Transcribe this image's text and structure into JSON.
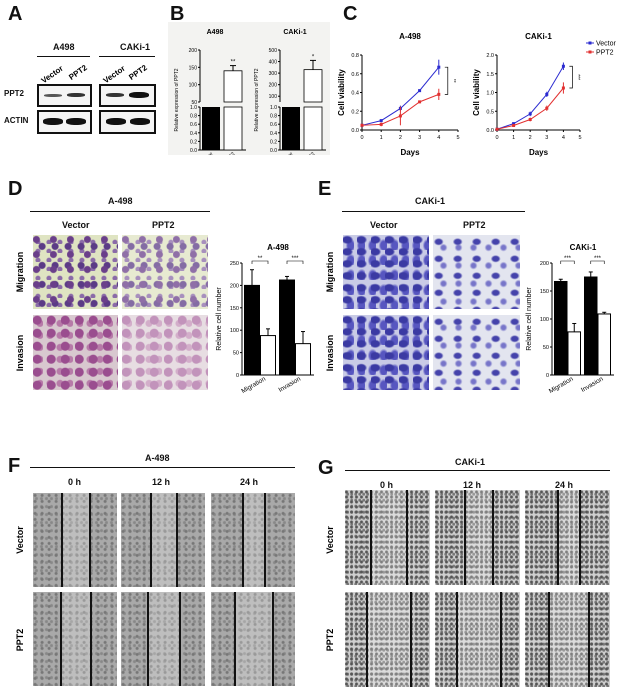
{
  "panels": {
    "A": {
      "label": "A",
      "groups": [
        "A498",
        "CAKi-1"
      ],
      "lanes": [
        "Vector",
        "PPT2"
      ],
      "rows": [
        "PPT2",
        "ACTIN"
      ]
    },
    "B": {
      "label": "B"
    },
    "C": {
      "label": "C"
    },
    "D": {
      "label": "D",
      "title": "A-498",
      "cols": [
        "Vector",
        "PPT2"
      ],
      "rows": [
        "Migration",
        "Invasion"
      ]
    },
    "E": {
      "label": "E",
      "title": "CAKi-1",
      "cols": [
        "Vector",
        "PPT2"
      ],
      "rows": [
        "Migration",
        "Invasion"
      ]
    },
    "F": {
      "label": "F",
      "title": "A-498",
      "times": [
        "0 h",
        "12 h",
        "24 h"
      ],
      "rows": [
        "Vector",
        "PPT2"
      ]
    },
    "G": {
      "label": "G",
      "title": "CAKi-1",
      "times": [
        "0 h",
        "12 h",
        "24 h"
      ],
      "rows": [
        "Vector",
        "PPT2"
      ]
    }
  },
  "colors": {
    "vector": "#2b2bd0",
    "ppt2": "#e23030"
  },
  "chart_data": [
    {
      "id": "B1",
      "type": "bar",
      "title": "A498",
      "ylabel": "Relative expression of PPT2",
      "categories": [
        "vector",
        "PPT2"
      ],
      "values": [
        1.0,
        140
      ],
      "errors": [
        0,
        15
      ],
      "broken_axis": {
        "lower": [
          0,
          1.0
        ],
        "upper": [
          50,
          200
        ],
        "lower_ticks": [
          "0.0",
          "0.2",
          "0.4",
          "0.6",
          "0.8",
          "1.0"
        ],
        "upper_ticks": [
          "50",
          "100",
          "150",
          "200"
        ]
      },
      "significance": "**"
    },
    {
      "id": "B2",
      "type": "bar",
      "title": "CAKi-1",
      "ylabel": "Relative expression of PPT2",
      "categories": [
        "vector",
        "PPT2"
      ],
      "values": [
        1.0,
        330
      ],
      "errors": [
        0,
        80
      ],
      "broken_axis": {
        "lower": [
          0,
          1.0
        ],
        "upper": [
          50,
          500
        ],
        "lower_ticks": [
          "0.0",
          "0.2",
          "0.4",
          "0.6",
          "0.8",
          "1.0"
        ],
        "upper_ticks": [
          "100",
          "200",
          "300",
          "400",
          "500"
        ]
      },
      "significance": "*"
    },
    {
      "id": "C1",
      "type": "line",
      "title": "A-498",
      "xlabel": "Days",
      "ylabel": "Cell viability",
      "x": [
        0,
        1,
        2,
        3,
        4
      ],
      "xlim": [
        0,
        5
      ],
      "ylim": [
        0,
        0.8
      ],
      "yticks": [
        "0.0",
        "0.2",
        "0.4",
        "0.6",
        "0.8"
      ],
      "xticks": [
        "0",
        "1",
        "2",
        "3",
        "4",
        "5"
      ],
      "series": [
        {
          "name": "Vector",
          "values": [
            0.05,
            0.1,
            0.23,
            0.42,
            0.67
          ],
          "errors": [
            0.01,
            0.01,
            0.03,
            0.01,
            0.08
          ]
        },
        {
          "name": "PPT2",
          "values": [
            0.05,
            0.06,
            0.15,
            0.3,
            0.38
          ],
          "errors": [
            0.01,
            0.02,
            0.1,
            0.01,
            0.06
          ]
        }
      ],
      "significance": "**"
    },
    {
      "id": "C2",
      "type": "line",
      "title": "CAKi-1",
      "xlabel": "Days",
      "ylabel": "Cell viability",
      "x": [
        0,
        1,
        2,
        3,
        4
      ],
      "xlim": [
        0,
        5
      ],
      "ylim": [
        0,
        2.0
      ],
      "yticks": [
        "0.0",
        "0.5",
        "1.0",
        "1.5",
        "2.0"
      ],
      "xticks": [
        "0",
        "1",
        "2",
        "3",
        "4",
        "5"
      ],
      "series": [
        {
          "name": "Vector",
          "values": [
            0.02,
            0.17,
            0.43,
            0.95,
            1.7
          ],
          "errors": [
            0.01,
            0.03,
            0.06,
            0.07,
            0.1
          ]
        },
        {
          "name": "PPT2",
          "values": [
            0.02,
            0.12,
            0.28,
            0.58,
            1.12
          ],
          "errors": [
            0.01,
            0.02,
            0.05,
            0.07,
            0.15
          ]
        }
      ],
      "significance": "***",
      "legend": "top-right"
    },
    {
      "id": "D",
      "type": "bar",
      "title": "A-498",
      "ylabel": "Relative cell number",
      "categories": [
        "Migration",
        "Invasion"
      ],
      "ylim": [
        0,
        250
      ],
      "yticks": [
        "0",
        "50",
        "100",
        "150",
        "200",
        "250"
      ],
      "series": [
        {
          "values": [
            200,
            212
          ],
          "errors": [
            35,
            8
          ]
        },
        {
          "values": [
            88,
            70
          ],
          "errors": [
            15,
            27
          ]
        }
      ],
      "significance": [
        "**",
        "***"
      ]
    },
    {
      "id": "E",
      "type": "bar",
      "title": "CAKi-1",
      "ylabel": "Relative cell number",
      "categories": [
        "Migration",
        "Invasion"
      ],
      "ylim": [
        0,
        200
      ],
      "yticks": [
        "0",
        "50",
        "100",
        "150",
        "200"
      ],
      "series": [
        {
          "values": [
            167,
            175
          ],
          "errors": [
            4,
            9
          ]
        },
        {
          "values": [
            77,
            109
          ],
          "errors": [
            15,
            3
          ]
        }
      ],
      "significance": [
        "***",
        "***"
      ]
    }
  ]
}
